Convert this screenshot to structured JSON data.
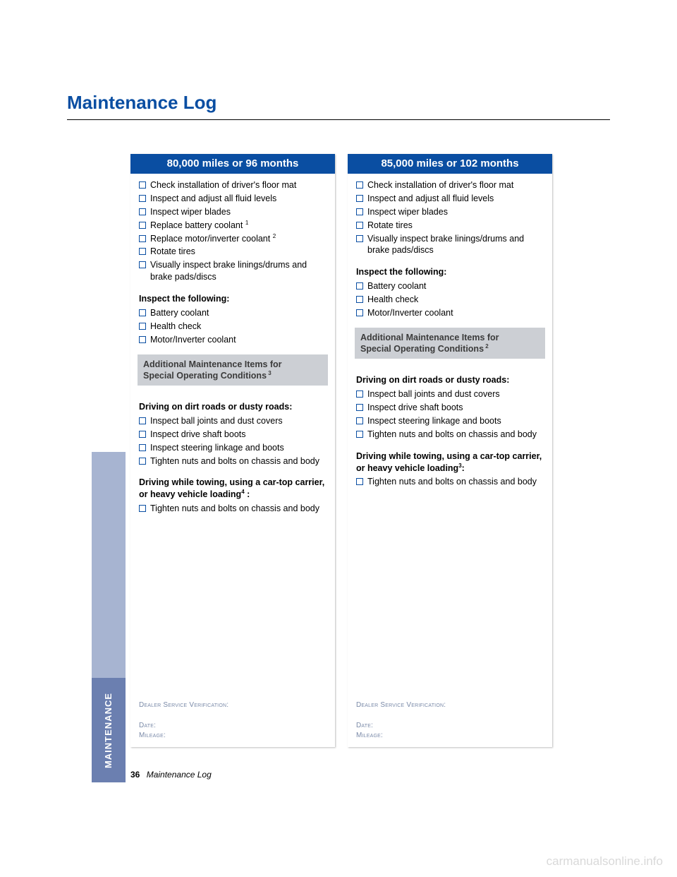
{
  "colors": {
    "title": "#0a4ea2",
    "header_bg": "#0a4ea2",
    "checkbox_border": "#0a4ea2",
    "graybox_bg": "#cccfd4",
    "graybox_text": "#3b3b3b",
    "dealer_text": "#7a8aa8",
    "sidetab_upper": "#a7b4d1",
    "sidetab_lower": "#6b7fb0",
    "watermark": "#dcdcdc"
  },
  "page_title": "Maintenance Log",
  "side_tab_label": "MAINTENANCE",
  "footer": {
    "page_num": "36",
    "label": "Maintenance Log"
  },
  "watermark": "carmanualsonline.info",
  "cards": [
    {
      "header": "80,000 miles or 96 months",
      "main_items": [
        "Check installation of driver's floor mat",
        "Inspect and adjust all fluid levels",
        "Inspect wiper blades",
        "Replace battery coolant <sup>1</sup>",
        "Replace motor/inverter coolant <sup>2</sup>",
        "Rotate tires",
        "Visually inspect brake linings/drums and brake pads/discs"
      ],
      "inspect_heading": "Inspect the following:",
      "inspect_items": [
        "Battery coolant",
        "Health check",
        "Motor/Inverter coolant"
      ],
      "graybox_lines": [
        "Additional Maintenance Items for",
        "Special Operating Conditions<sup> 3</sup>"
      ],
      "dirt_heading": "Driving on dirt roads or dusty roads:",
      "dirt_items": [
        "Inspect ball joints and dust covers",
        "Inspect drive shaft boots",
        "Inspect steering linkage and boots",
        "Tighten nuts and bolts on chassis and body"
      ],
      "towing_heading": "Driving while towing, using a car-top carrier, or heavy vehicle loading<sup>4</sup> :",
      "towing_items": [
        "Tighten nuts and bolts on chassis and body"
      ],
      "dealer": {
        "verify": "Dealer Service Verification:",
        "date": "Date:",
        "mileage": "Mileage:"
      }
    },
    {
      "header": "85,000 miles or 102 months",
      "main_items": [
        "Check installation of driver's floor mat",
        "Inspect and adjust all fluid levels",
        "Inspect wiper blades",
        "Rotate tires",
        "Visually inspect brake linings/drums and brake pads/discs"
      ],
      "inspect_heading": "Inspect the following:",
      "inspect_items": [
        "Battery coolant",
        "Health check",
        "Motor/Inverter coolant"
      ],
      "graybox_lines": [
        "Additional Maintenance Items for",
        "Special Operating Conditions<sup> 2</sup>"
      ],
      "dirt_heading": "Driving on dirt roads or dusty roads:",
      "dirt_items": [
        "Inspect ball joints and dust covers",
        "Inspect drive shaft boots",
        "Inspect steering linkage and boots",
        "Tighten nuts and bolts on chassis and body"
      ],
      "towing_heading": "Driving while towing, using a car-top carrier, or heavy vehicle loading<sup>3</sup>:",
      "towing_items": [
        "Tighten nuts and bolts on chassis and body"
      ],
      "dealer": {
        "verify": "Dealer Service Verification:",
        "date": "Date:",
        "mileage": "Mileage:"
      }
    }
  ]
}
